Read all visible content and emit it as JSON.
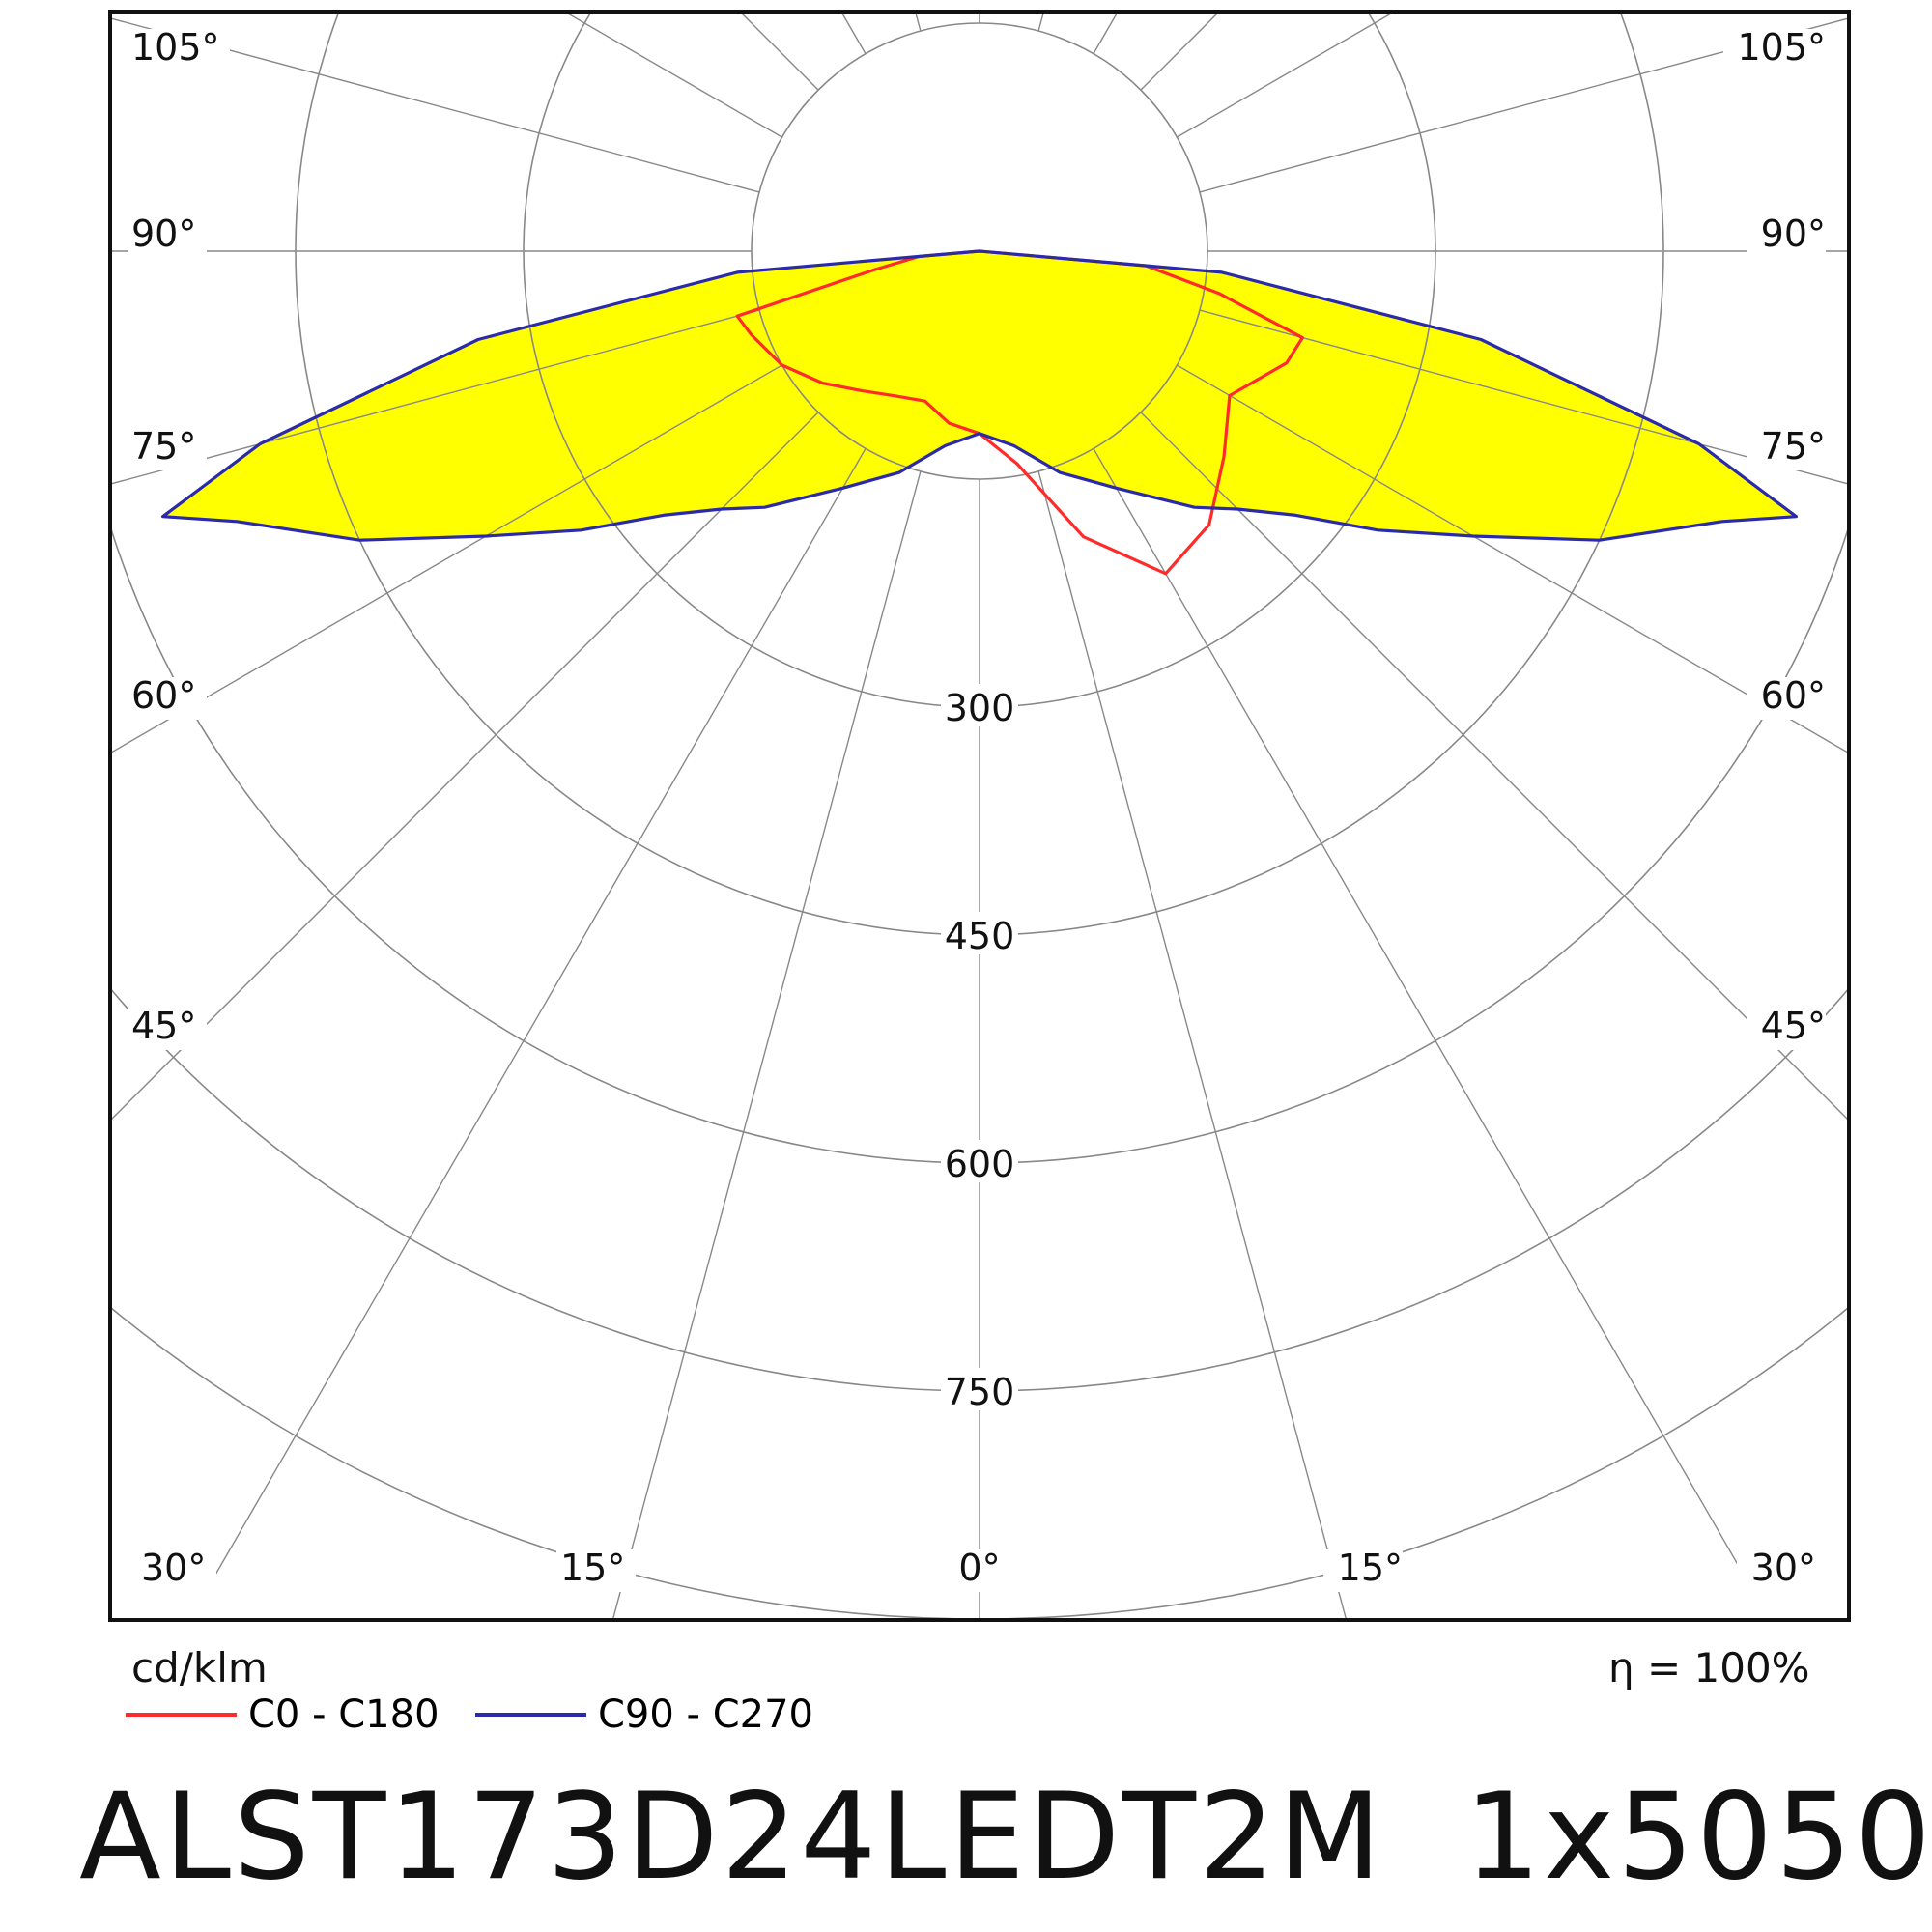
{
  "chart_data": {
    "type": "polar",
    "unit_label": "cd/klm",
    "efficiency_label": "η = 100%",
    "radial_ticks": [
      "300",
      "450",
      "600",
      "750"
    ],
    "radial_values": [
      150,
      300,
      450,
      600,
      750,
      900
    ],
    "angle_labels_left": [
      "105°",
      "90°",
      "75°",
      "60°",
      "45°",
      "30°",
      "15°"
    ],
    "angle_labels_right": [
      "105°",
      "90°",
      "75°",
      "60°",
      "45°",
      "30°",
      "15°"
    ],
    "angle_label_bottom": "0°",
    "angle_values": [
      105,
      90,
      75,
      60,
      45,
      30,
      15
    ],
    "series": [
      {
        "name": "C0 - C180",
        "color": "#ff2a2a",
        "points": [
          [
            -90,
            0
          ],
          [
            -85,
            40
          ],
          [
            -80,
            70
          ],
          [
            -75,
            165
          ],
          [
            -70,
            160
          ],
          [
            -60,
            150
          ],
          [
            -50,
            135
          ],
          [
            -40,
            120
          ],
          [
            -30,
            110
          ],
          [
            -20,
            105
          ],
          [
            -10,
            115
          ],
          [
            0,
            120
          ],
          [
            10,
            142
          ],
          [
            20,
            200
          ],
          [
            30,
            245
          ],
          [
            40,
            235
          ],
          [
            50,
            210
          ],
          [
            60,
            190
          ],
          [
            70,
            215
          ],
          [
            75,
            220
          ],
          [
            80,
            160
          ],
          [
            85,
            110
          ],
          [
            90,
            0
          ]
        ]
      },
      {
        "name": "C90 - C270",
        "color": "#2a2aaa",
        "points": [
          [
            -90,
            0
          ],
          [
            -85,
            160
          ],
          [
            -80,
            335
          ],
          [
            -75,
            490
          ],
          [
            -72,
            565
          ],
          [
            -70,
            520
          ],
          [
            -65,
            450
          ],
          [
            -60,
            375
          ],
          [
            -55,
            320
          ],
          [
            -50,
            270
          ],
          [
            -45,
            240
          ],
          [
            -40,
            220
          ],
          [
            -30,
            180
          ],
          [
            -20,
            155
          ],
          [
            -10,
            130
          ],
          [
            0,
            120
          ],
          [
            10,
            130
          ],
          [
            20,
            155
          ],
          [
            30,
            180
          ],
          [
            40,
            220
          ],
          [
            45,
            240
          ],
          [
            50,
            270
          ],
          [
            55,
            320
          ],
          [
            60,
            375
          ],
          [
            65,
            450
          ],
          [
            70,
            520
          ],
          [
            72,
            565
          ],
          [
            75,
            490
          ],
          [
            80,
            335
          ],
          [
            85,
            160
          ],
          [
            90,
            0
          ]
        ]
      }
    ],
    "fill_color": "#ffff00"
  },
  "product": {
    "model": "ALST173D24LEDT2M",
    "package": "1x5050"
  }
}
